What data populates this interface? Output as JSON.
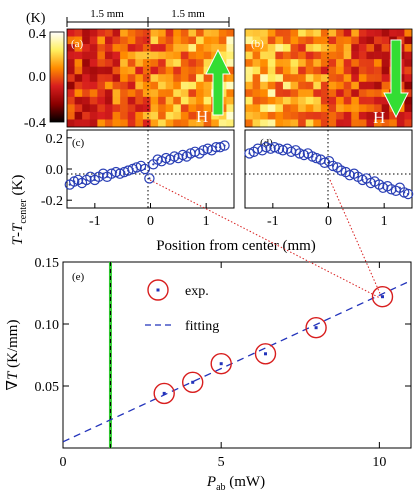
{
  "figure": {
    "colorbar": {
      "unit_label": "(K)",
      "tick_labels": [
        "0.4",
        "0.0",
        "-0.4"
      ],
      "ticks": [
        0.4,
        0.0,
        -0.4
      ],
      "colors": [
        "#000000",
        "#8b0000",
        "#d81e1e",
        "#ff8c00",
        "#fff060",
        "#ffffff"
      ]
    },
    "scale_labels": [
      "1.5 mm",
      "1.5 mm"
    ],
    "panel_labels": {
      "a": "(a)",
      "b": "(b)",
      "c": "(c)",
      "d": "(d)",
      "e": "(e)"
    },
    "field_label": "H",
    "colors": {
      "marker": "#2a3fb5",
      "red": "#d81e1e",
      "fit": "#2233bb",
      "arrow_green": "#33dd33",
      "vline": "#33cc33"
    }
  },
  "chart_data": [
    {
      "type": "scatter",
      "panel": "(c)",
      "ylabel": "T-T center (K)",
      "ylim": [
        -0.25,
        0.25
      ],
      "xlim": [
        -1.5,
        1.5
      ],
      "yticks": [
        0.2,
        0.0,
        -0.2
      ],
      "ytick_labels": [
        "0.2",
        "0.0",
        "-0.2"
      ],
      "xticks": [
        -1,
        0,
        1
      ],
      "xtick_labels": [
        "-1",
        "0",
        "1"
      ],
      "x": [
        -1.45,
        -1.37,
        -1.3,
        -1.23,
        -1.15,
        -1.08,
        -1.0,
        -0.93,
        -0.85,
        -0.78,
        -0.7,
        -0.62,
        -0.55,
        -0.47,
        -0.4,
        -0.32,
        -0.25,
        -0.17,
        -0.1,
        -0.02,
        0.05,
        0.13,
        0.2,
        0.28,
        0.35,
        0.43,
        0.5,
        0.58,
        0.65,
        0.72,
        0.8,
        0.88,
        0.95,
        1.03,
        1.1,
        1.18,
        1.25,
        1.33
      ],
      "y": [
        -0.1,
        -0.08,
        -0.07,
        -0.09,
        -0.07,
        -0.05,
        -0.07,
        -0.05,
        -0.03,
        -0.05,
        -0.03,
        -0.02,
        -0.03,
        -0.02,
        -0.01,
        0.0,
        0.01,
        0.02,
        0.0,
        -0.06,
        0.03,
        0.06,
        0.05,
        0.07,
        0.06,
        0.08,
        0.07,
        0.09,
        0.08,
        0.1,
        0.11,
        0.1,
        0.12,
        0.13,
        0.12,
        0.14,
        0.14,
        0.15
      ]
    },
    {
      "type": "scatter",
      "panel": "(d)",
      "ylim": [
        -0.25,
        0.25
      ],
      "xlim": [
        -1.5,
        1.5
      ],
      "xticks": [
        -1,
        0,
        1
      ],
      "xtick_labels": [
        "-1",
        "0",
        "1"
      ],
      "xlabel": "Position from center (mm)",
      "x": [
        -1.42,
        -1.34,
        -1.27,
        -1.19,
        -1.12,
        -1.04,
        -0.97,
        -0.89,
        -0.82,
        -0.74,
        -0.67,
        -0.59,
        -0.52,
        -0.44,
        -0.37,
        -0.29,
        -0.22,
        -0.14,
        -0.07,
        0.01,
        0.08,
        0.16,
        0.23,
        0.31,
        0.38,
        0.46,
        0.53,
        0.61,
        0.68,
        0.76,
        0.83,
        0.91,
        0.98,
        1.06,
        1.13,
        1.21,
        1.28,
        1.36,
        1.43
      ],
      "y": [
        0.1,
        0.11,
        0.13,
        0.12,
        0.14,
        0.13,
        0.14,
        0.13,
        0.12,
        0.13,
        0.11,
        0.12,
        0.1,
        0.09,
        0.1,
        0.08,
        0.07,
        0.06,
        0.04,
        0.05,
        0.02,
        0.01,
        -0.01,
        -0.02,
        -0.04,
        -0.03,
        -0.05,
        -0.07,
        -0.06,
        -0.09,
        -0.08,
        -0.1,
        -0.12,
        -0.11,
        -0.13,
        -0.14,
        -0.12,
        -0.15,
        -0.16
      ]
    },
    {
      "type": "scatter",
      "panel": "(e)",
      "xlabel": "P ab (mW)",
      "ylabel": "∇T (K/mm)",
      "xlim": [
        0,
        11
      ],
      "ylim": [
        0,
        0.15
      ],
      "xticks": [
        0,
        5,
        10
      ],
      "xtick_labels": [
        "0",
        "5",
        "10"
      ],
      "yticks": [
        0.05,
        0.1,
        0.15
      ],
      "ytick_labels": [
        "0.05",
        "0.10",
        "0.15"
      ],
      "series": [
        {
          "name": "exp.",
          "x": [
            3.2,
            4.1,
            5.0,
            6.4,
            8.0,
            10.1
          ],
          "y": [
            0.044,
            0.053,
            0.068,
            0.076,
            0.097,
            0.122
          ]
        },
        {
          "name": "fitting",
          "type": "line",
          "x": [
            0,
            11
          ],
          "y": [
            0.005,
            0.135
          ]
        }
      ],
      "vline_x": 1.5
    }
  ]
}
